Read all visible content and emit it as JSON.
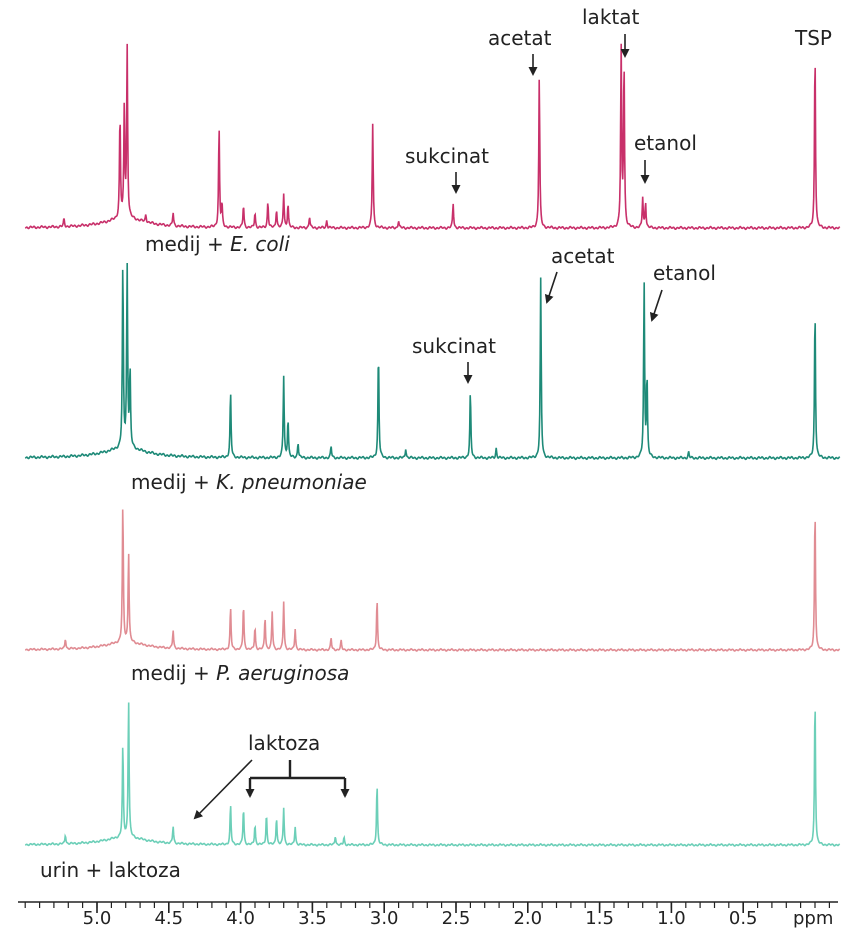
{
  "chart_data": {
    "type": "line",
    "x_axis": {
      "unit_label": "ppm",
      "range": [
        5.5,
        -0.2
      ],
      "reversed": true,
      "major_ticks": [
        5.0,
        4.5,
        4.0,
        3.5,
        3.0,
        2.5,
        2.0,
        1.5,
        1.0,
        0.5
      ],
      "tick_labels": [
        "5.0",
        "4.5",
        "4.0",
        "3.5",
        "3.0",
        "2.5",
        "2.0",
        "1.5",
        "1.0",
        "0.5"
      ],
      "minor_step": 0.1
    },
    "series": [
      {
        "key": "ecoli",
        "label_prefix": "medij  + ",
        "label_organism": "E. coli",
        "color": "#c8306a",
        "baseline_intensity": 0.0,
        "peaks": [
          {
            "ppm": 5.23,
            "h": 0.04
          },
          {
            "ppm": 4.84,
            "h": 0.55
          },
          {
            "ppm": 4.81,
            "h": 0.58
          },
          {
            "ppm": 4.79,
            "h": 0.9
          },
          {
            "ppm": 4.66,
            "h": 0.04
          },
          {
            "ppm": 4.47,
            "h": 0.07
          },
          {
            "ppm": 4.15,
            "h": 0.53
          },
          {
            "ppm": 4.13,
            "h": 0.12
          },
          {
            "ppm": 3.98,
            "h": 0.12
          },
          {
            "ppm": 3.9,
            "h": 0.08
          },
          {
            "ppm": 3.81,
            "h": 0.14
          },
          {
            "ppm": 3.75,
            "h": 0.1
          },
          {
            "ppm": 3.7,
            "h": 0.18
          },
          {
            "ppm": 3.67,
            "h": 0.13
          },
          {
            "ppm": 3.52,
            "h": 0.06
          },
          {
            "ppm": 3.4,
            "h": 0.04
          },
          {
            "ppm": 3.08,
            "h": 0.55
          },
          {
            "ppm": 2.9,
            "h": 0.04
          },
          {
            "ppm": 2.52,
            "h": 0.13
          },
          {
            "ppm": 1.92,
            "h": 0.8
          },
          {
            "ppm": 1.35,
            "h": 0.94
          },
          {
            "ppm": 1.33,
            "h": 0.88
          },
          {
            "ppm": 1.2,
            "h": 0.16
          },
          {
            "ppm": 1.18,
            "h": 0.14
          },
          {
            "ppm": 0.0,
            "h": 0.95
          }
        ],
        "annotations": [
          {
            "text": "acetat",
            "ppm": 1.92
          },
          {
            "text": "laktat",
            "ppm": 1.34
          },
          {
            "text": "TSP",
            "ppm": 0.0
          },
          {
            "text": "sukcinat",
            "ppm": 2.52
          },
          {
            "text": "etanol",
            "ppm": 1.19
          }
        ]
      },
      {
        "key": "kpneumoniae",
        "label_prefix": "medij  + ",
        "label_organism": "K. pneumoniae",
        "color": "#1e8a78",
        "peaks": [
          {
            "ppm": 4.82,
            "h": 0.95
          },
          {
            "ppm": 4.79,
            "h": 0.95
          },
          {
            "ppm": 4.77,
            "h": 0.4
          },
          {
            "ppm": 4.07,
            "h": 0.34
          },
          {
            "ppm": 3.7,
            "h": 0.42
          },
          {
            "ppm": 3.67,
            "h": 0.2
          },
          {
            "ppm": 3.6,
            "h": 0.08
          },
          {
            "ppm": 3.37,
            "h": 0.06
          },
          {
            "ppm": 3.04,
            "h": 0.55
          },
          {
            "ppm": 2.85,
            "h": 0.05
          },
          {
            "ppm": 2.4,
            "h": 0.34
          },
          {
            "ppm": 2.22,
            "h": 0.05
          },
          {
            "ppm": 1.91,
            "h": 0.92
          },
          {
            "ppm": 1.19,
            "h": 0.9
          },
          {
            "ppm": 1.17,
            "h": 0.42
          },
          {
            "ppm": 0.88,
            "h": 0.03
          },
          {
            "ppm": 0.0,
            "h": 0.78
          }
        ],
        "annotations": [
          {
            "text": "acetat",
            "ppm": 1.91
          },
          {
            "text": "etanol",
            "ppm": 1.19
          },
          {
            "text": "sukcinat",
            "ppm": 2.4
          }
        ]
      },
      {
        "key": "paeruginosa",
        "label_prefix": "medij  + ",
        "label_organism": "P. aeruginosa",
        "color": "#e08c93",
        "peaks": [
          {
            "ppm": 5.22,
            "h": 0.07
          },
          {
            "ppm": 4.82,
            "h": 0.92
          },
          {
            "ppm": 4.78,
            "h": 0.6
          },
          {
            "ppm": 4.47,
            "h": 0.12
          },
          {
            "ppm": 4.07,
            "h": 0.28
          },
          {
            "ppm": 3.98,
            "h": 0.3
          },
          {
            "ppm": 3.9,
            "h": 0.15
          },
          {
            "ppm": 3.83,
            "h": 0.22
          },
          {
            "ppm": 3.78,
            "h": 0.25
          },
          {
            "ppm": 3.7,
            "h": 0.32
          },
          {
            "ppm": 3.62,
            "h": 0.14
          },
          {
            "ppm": 3.37,
            "h": 0.08
          },
          {
            "ppm": 3.3,
            "h": 0.06
          },
          {
            "ppm": 3.05,
            "h": 0.34
          },
          {
            "ppm": 0.0,
            "h": 0.95
          }
        ],
        "annotations": []
      },
      {
        "key": "urin",
        "label_prefix": "urin + laktoza",
        "label_organism": "",
        "color": "#6ccfb8",
        "peaks": [
          {
            "ppm": 5.22,
            "h": 0.06
          },
          {
            "ppm": 4.82,
            "h": 0.6
          },
          {
            "ppm": 4.78,
            "h": 0.9
          },
          {
            "ppm": 4.47,
            "h": 0.11
          },
          {
            "ppm": 4.07,
            "h": 0.26
          },
          {
            "ppm": 3.98,
            "h": 0.24
          },
          {
            "ppm": 3.9,
            "h": 0.13
          },
          {
            "ppm": 3.82,
            "h": 0.2
          },
          {
            "ppm": 3.75,
            "h": 0.18
          },
          {
            "ppm": 3.7,
            "h": 0.24
          },
          {
            "ppm": 3.62,
            "h": 0.12
          },
          {
            "ppm": 3.34,
            "h": 0.06
          },
          {
            "ppm": 3.28,
            "h": 0.05
          },
          {
            "ppm": 3.05,
            "h": 0.4
          },
          {
            "ppm": 0.0,
            "h": 0.97
          }
        ],
        "annotations": [
          {
            "text": "laktoza",
            "ppm_range": [
              4.47,
              3.28
            ]
          }
        ]
      }
    ]
  }
}
